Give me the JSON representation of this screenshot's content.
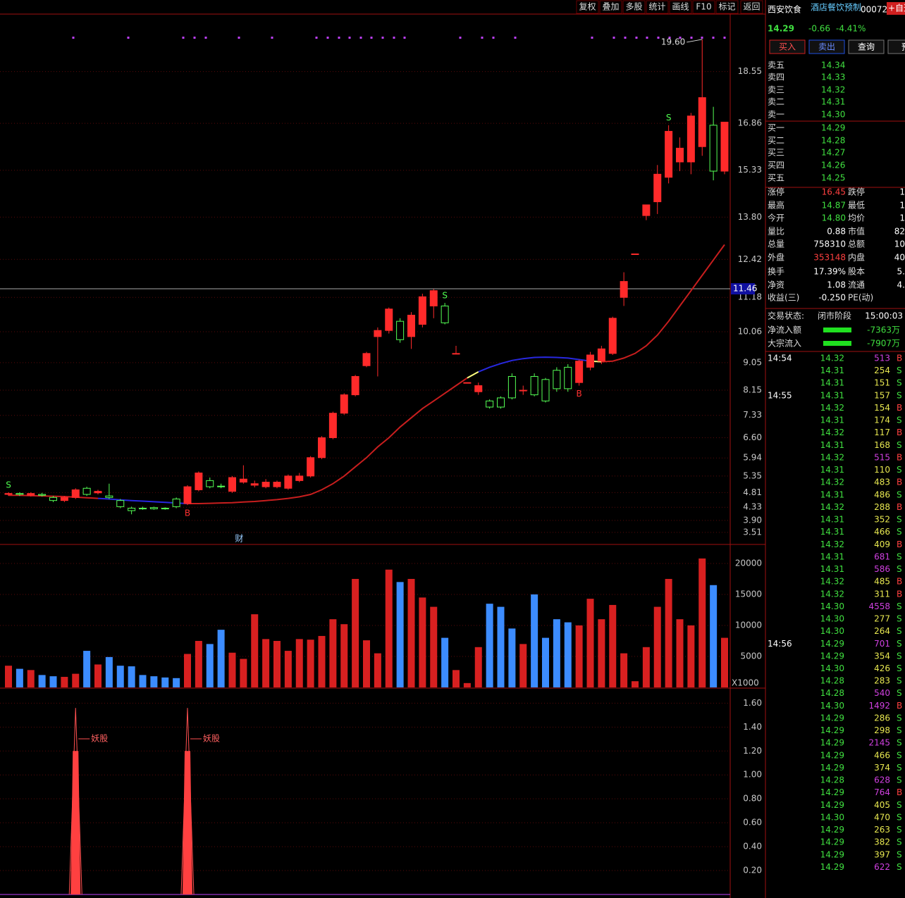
{
  "toolbar": [
    "复权",
    "叠加",
    "多股",
    "统计",
    "画线",
    "F10",
    "标记",
    "返回"
  ],
  "chart_data": {
    "type": "candlestick",
    "ylim": [
      3.14,
      20.38
    ],
    "yticks": [
      3.51,
      {
        "value": 3.9,
        "label": "3.90"
      },
      4.33,
      4.81,
      5.35,
      5.94,
      {
        "value": 6.6,
        "label": "6.60"
      },
      7.33,
      8.15,
      9.05,
      10.06,
      11.18,
      12.42,
      {
        "value": 13.8,
        "label": "13.80"
      },
      15.33,
      16.86,
      18.55
    ],
    "up_color": "#ff2a2a",
    "down_color": "#54ff54",
    "candles": [
      [
        4.75,
        4.78,
        4.82,
        4.7
      ],
      [
        4.78,
        4.75,
        4.82,
        4.7
      ],
      [
        4.72,
        4.78,
        4.82,
        4.68
      ],
      [
        4.75,
        4.72,
        4.8,
        4.68
      ],
      [
        4.65,
        4.55,
        4.7,
        4.5
      ],
      [
        4.55,
        4.65,
        4.7,
        4.5
      ],
      [
        4.65,
        4.9,
        4.95,
        4.6
      ],
      [
        4.95,
        4.75,
        5.0,
        4.7
      ],
      [
        4.8,
        4.85,
        4.9,
        4.75
      ],
      [
        4.7,
        4.65,
        5.1,
        4.6
      ],
      [
        4.55,
        4.35,
        4.6,
        4.3
      ],
      [
        4.3,
        4.22,
        4.35,
        4.1
      ],
      [
        4.3,
        4.28,
        4.35,
        4.25
      ],
      [
        4.32,
        4.28,
        4.35,
        4.25
      ],
      [
        4.3,
        4.28,
        4.33,
        4.25
      ],
      [
        4.6,
        4.35,
        4.65,
        4.3
      ],
      [
        4.45,
        5.0,
        5.05,
        4.4
      ],
      [
        4.9,
        5.45,
        5.5,
        4.85
      ],
      [
        5.2,
        5.0,
        5.3,
        4.95
      ],
      [
        5.02,
        5.0,
        5.1,
        4.95
      ],
      [
        4.85,
        5.3,
        5.35,
        4.8
      ],
      [
        5.15,
        5.25,
        5.7,
        5.1
      ],
      [
        5.05,
        5.1,
        5.2,
        4.98
      ],
      [
        5.0,
        5.15,
        5.25,
        4.95
      ],
      [
        5.0,
        5.15,
        5.2,
        4.95
      ],
      [
        4.95,
        5.35,
        5.4,
        4.9
      ],
      [
        5.2,
        5.35,
        5.45,
        5.15
      ],
      [
        5.35,
        5.95,
        6.0,
        5.3
      ],
      [
        5.95,
        6.6,
        6.65,
        5.9
      ],
      [
        6.6,
        7.4,
        7.45,
        6.55
      ],
      [
        7.4,
        8.0,
        8.05,
        7.35
      ],
      [
        8.0,
        8.6,
        8.65,
        7.95
      ],
      [
        8.95,
        9.35,
        9.4,
        8.9
      ],
      [
        9.9,
        10.1,
        10.2,
        8.6
      ],
      [
        10.1,
        10.8,
        10.85,
        10.0
      ],
      [
        10.4,
        9.8,
        10.5,
        9.7
      ],
      [
        9.9,
        10.6,
        10.7,
        9.5
      ],
      [
        10.3,
        11.2,
        11.3,
        10.2
      ],
      [
        10.9,
        11.4,
        11.45,
        10.5
      ],
      [
        10.9,
        10.35,
        11.0,
        10.3
      ],
      [
        9.35,
        9.35,
        9.6,
        9.35
      ],
      [
        8.4,
        8.4,
        8.4,
        8.4
      ],
      [
        8.1,
        8.3,
        8.4,
        8.0
      ],
      [
        7.8,
        7.6,
        7.85,
        7.55
      ],
      [
        7.9,
        7.6,
        7.95,
        7.55
      ],
      [
        8.6,
        7.9,
        8.7,
        7.85
      ],
      [
        8.15,
        8.15,
        8.3,
        8.0
      ],
      [
        8.6,
        8.0,
        8.7,
        7.95
      ],
      [
        8.5,
        7.8,
        8.55,
        7.75
      ],
      [
        8.8,
        8.2,
        8.9,
        8.1
      ],
      [
        8.9,
        8.2,
        9.0,
        8.1
      ],
      [
        8.4,
        9.1,
        9.15,
        8.3
      ],
      [
        8.9,
        9.3,
        9.4,
        8.8
      ],
      [
        9.1,
        9.5,
        9.6,
        9.0
      ],
      [
        9.35,
        10.5,
        10.55,
        9.3
      ],
      [
        11.18,
        11.7,
        12.0,
        10.9
      ],
      [
        12.6,
        12.6,
        12.6,
        12.6
      ],
      [
        13.85,
        14.2,
        14.2,
        13.7
      ],
      [
        14.3,
        15.2,
        15.5,
        13.9
      ],
      [
        15.1,
        16.6,
        16.8,
        14.9
      ],
      [
        15.6,
        16.05,
        16.4,
        15.3
      ],
      [
        15.6,
        17.1,
        17.2,
        15.2
      ],
      [
        16.1,
        17.7,
        19.6,
        15.8
      ],
      [
        16.8,
        15.3,
        17.4,
        15.0
      ],
      [
        15.3,
        16.9,
        16.9,
        15.2
      ]
    ],
    "ma": [
      4.72,
      4.72,
      4.71,
      4.7,
      4.69,
      4.68,
      4.66,
      4.64,
      4.62,
      4.6,
      4.57,
      4.55,
      4.53,
      4.51,
      4.49,
      4.47,
      4.45,
      4.45,
      4.46,
      4.47,
      4.48,
      4.5,
      4.52,
      4.55,
      4.58,
      4.62,
      4.67,
      4.75,
      4.9,
      5.1,
      5.35,
      5.65,
      5.95,
      6.3,
      6.6,
      6.95,
      7.25,
      7.55,
      7.8,
      8.05,
      8.3,
      8.55,
      8.75,
      8.9,
      9.02,
      9.12,
      9.18,
      9.22,
      9.23,
      9.22,
      9.2,
      9.15,
      9.1,
      9.08,
      9.1,
      9.2,
      9.35,
      9.6,
      9.95,
      10.4,
      10.9,
      11.4,
      11.9,
      12.4,
      12.9
    ],
    "ma_segments": [
      {
        "from": 0,
        "to": 8,
        "color": "#c81e1e"
      },
      {
        "from": 8,
        "to": 16,
        "color": "#2828e0"
      },
      {
        "from": 16,
        "to": 41,
        "color": "#c81e1e"
      },
      {
        "from": 41,
        "to": 42,
        "color": "#ffff80"
      },
      {
        "from": 42,
        "to": 52,
        "color": "#2828e0"
      },
      {
        "from": 52,
        "to": 53,
        "color": "#ffff80"
      },
      {
        "from": 53,
        "to": 64,
        "color": "#c81e1e"
      }
    ],
    "high_marker": {
      "index": 62,
      "value": 19.6,
      "label": "19.60"
    },
    "price_line": 11.46,
    "signals": [
      {
        "index": 0,
        "label": "S"
      },
      {
        "index": 16,
        "label": "B"
      },
      {
        "index": 39,
        "label": "S"
      },
      {
        "index": 51,
        "label": "B"
      },
      {
        "index": 59,
        "label": "S"
      }
    ],
    "event": {
      "index": 21,
      "label": "财"
    },
    "volume": {
      "values": [
        3500,
        3000,
        2800,
        2000,
        1800,
        1700,
        2200,
        5900,
        3700,
        4900,
        3500,
        3400,
        2000,
        1800,
        1600,
        1500,
        5400,
        7500,
        7000,
        9300,
        5600,
        4600,
        11800,
        7800,
        7500,
        5900,
        7800,
        7700,
        8300,
        11000,
        10200,
        17500,
        7600,
        5500,
        19000,
        17000,
        17500,
        14500,
        13000,
        8000,
        2800,
        700,
        6500,
        13500,
        13000,
        9500,
        7000,
        15000,
        8000,
        11000,
        10500,
        10000,
        14300,
        11000,
        13300,
        5500,
        1000,
        6500,
        13000,
        17500,
        11000,
        10000,
        20800,
        16500,
        8000
      ],
      "ylim": [
        0,
        22950
      ],
      "yticks": [
        5000,
        10000,
        15000,
        20000
      ],
      "unit": "X1000"
    },
    "indicator": {
      "ylim": [
        0,
        1.72
      ],
      "yticks": [
        {
          "value": 1.6,
          "label": "1.60"
        },
        {
          "value": 1.4,
          "label": "1.40"
        },
        {
          "value": 1.2,
          "label": "1.20"
        },
        {
          "value": 1.0,
          "label": "1.00"
        },
        {
          "value": 0.8,
          "label": "0.80"
        },
        {
          "value": 0.6,
          "label": "0.60"
        },
        {
          "value": 0.4,
          "label": "0.40"
        },
        {
          "value": 0.2,
          "label": "0.20"
        }
      ],
      "spikes": [
        {
          "index": 6,
          "value": 1.2,
          "peak": 1.56,
          "label": "妖股"
        },
        {
          "index": 16,
          "value": 1.2,
          "peak": 1.56,
          "label": "妖股"
        }
      ]
    }
  },
  "quote": {
    "name": "西安饮食",
    "industry": "酒店餐饮预制",
    "code": "00072",
    "watch": "+自选",
    "price": "14.29",
    "change": "-0.66",
    "pct": "-4.41%",
    "buttons": [
      "买入",
      "卖出",
      "查询",
      "预"
    ],
    "book": [
      [
        "卖五",
        "14.34"
      ],
      [
        "卖四",
        "14.33"
      ],
      [
        "卖三",
        "14.32"
      ],
      [
        "卖二",
        "14.31"
      ],
      [
        "卖一",
        "14.30"
      ],
      [
        "买一",
        "14.29"
      ],
      [
        "买二",
        "14.28"
      ],
      [
        "买三",
        "14.27"
      ],
      [
        "买四",
        "14.26"
      ],
      [
        "买五",
        "14.25"
      ]
    ],
    "stats": [
      [
        "涨停",
        "16.45",
        "跌停",
        "1"
      ],
      [
        "最高",
        "14.87",
        "最低",
        "1"
      ],
      [
        "今开",
        "14.80",
        "均价",
        "1"
      ],
      [
        "量比",
        "0.88",
        "市值",
        "82"
      ],
      [
        "总量",
        "758310",
        "总额",
        "10"
      ],
      [
        "外盘",
        "353148",
        "内盘",
        "40"
      ],
      [
        "换手",
        "17.39%",
        "股本",
        "5."
      ],
      [
        "净资",
        "1.08",
        "流通",
        "4."
      ],
      [
        "收益(三)",
        "-0.250",
        "PE(动)",
        ""
      ]
    ],
    "status_label": "交易状态:",
    "status": "闭市阶段",
    "status_time": "15:00:03",
    "flows": [
      [
        "净流入额",
        "-7363万"
      ],
      [
        "大宗流入",
        "-7907万"
      ]
    ],
    "trades": [
      {
        "time": "14:54",
        "rows": [
          [
            "14.32",
            513,
            "B"
          ],
          [
            "14.31",
            254,
            "S"
          ],
          [
            "14.31",
            151,
            "S"
          ]
        ]
      },
      {
        "time": "14:55",
        "rows": [
          [
            "14.31",
            157,
            "S"
          ],
          [
            "14.32",
            154,
            "B"
          ],
          [
            "14.31",
            174,
            "S"
          ],
          [
            "14.32",
            117,
            "B"
          ],
          [
            "14.31",
            168,
            "S"
          ],
          [
            "14.32",
            515,
            "B"
          ],
          [
            "14.31",
            110,
            "S"
          ],
          [
            "14.32",
            483,
            "B"
          ],
          [
            "14.31",
            486,
            "S"
          ],
          [
            "14.32",
            288,
            "B"
          ],
          [
            "14.31",
            352,
            "S"
          ],
          [
            "14.31",
            466,
            "S"
          ],
          [
            "14.32",
            409,
            "B"
          ],
          [
            "14.31",
            681,
            "S"
          ],
          [
            "14.31",
            586,
            "S"
          ],
          [
            "14.32",
            485,
            "B"
          ],
          [
            "14.32",
            311,
            "B"
          ],
          [
            "14.30",
            4558,
            "S"
          ],
          [
            "14.30",
            277,
            "S"
          ],
          [
            "14.30",
            264,
            "S"
          ]
        ]
      },
      {
        "time": "14:56",
        "rows": [
          [
            "14.29",
            701,
            "S"
          ],
          [
            "14.29",
            354,
            "S"
          ],
          [
            "14.30",
            426,
            "S"
          ],
          [
            "14.28",
            283,
            "S"
          ],
          [
            "14.28",
            540,
            "S"
          ],
          [
            "14.30",
            1492,
            "B"
          ],
          [
            "14.29",
            286,
            "S"
          ],
          [
            "14.29",
            298,
            "S"
          ],
          [
            "14.29",
            2145,
            "S"
          ],
          [
            "14.29",
            466,
            "S"
          ],
          [
            "14.29",
            374,
            "S"
          ],
          [
            "14.28",
            628,
            "S"
          ],
          [
            "14.29",
            764,
            "B"
          ],
          [
            "14.29",
            405,
            "S"
          ],
          [
            "14.30",
            470,
            "S"
          ],
          [
            "14.29",
            263,
            "S"
          ],
          [
            "14.29",
            382,
            "S"
          ],
          [
            "14.29",
            397,
            "S"
          ],
          [
            "14.29",
            622,
            "S"
          ]
        ]
      }
    ]
  }
}
